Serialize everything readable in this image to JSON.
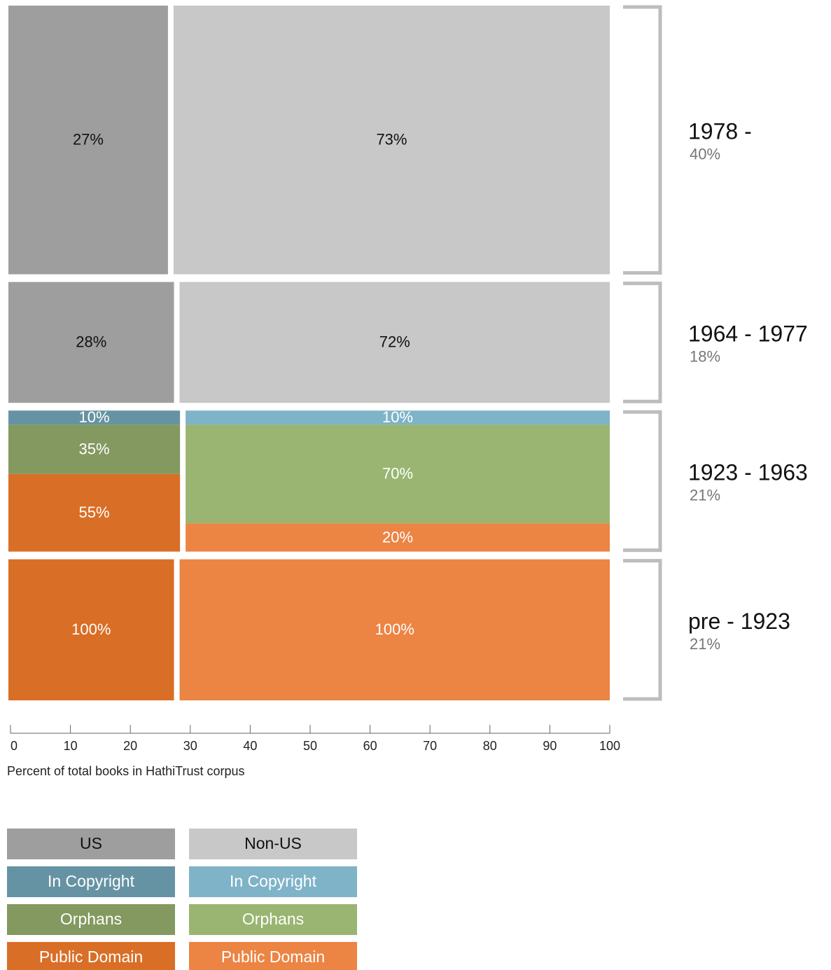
{
  "chart_data": {
    "type": "mosaic",
    "xlabel": "Percent of total books in HathiTrust corpus",
    "xlim": [
      0,
      100
    ],
    "xticks": [
      0,
      10,
      20,
      30,
      40,
      50,
      60,
      70,
      80,
      90,
      100
    ],
    "periods": [
      {
        "name": "1978 -",
        "share": 40,
        "share_label": "40%",
        "columns": [
          {
            "width": 27,
            "width_label": "27%",
            "color": "#9e9e9e"
          },
          {
            "width": 73,
            "width_label": "73%",
            "color": "#c8c8c8"
          }
        ]
      },
      {
        "name": "1964 - 1977",
        "share": 18,
        "share_label": "18%",
        "columns": [
          {
            "width": 28,
            "width_label": "28%",
            "color": "#9e9e9e"
          },
          {
            "width": 72,
            "width_label": "72%",
            "color": "#c8c8c8"
          }
        ]
      },
      {
        "name": "1923 - 1963",
        "share": 21,
        "share_label": "21%",
        "columns": [
          {
            "width": 29,
            "segments": [
              {
                "value": 10,
                "value_label": "10%",
                "color": "#6693a4"
              },
              {
                "value": 35,
                "value_label": "35%",
                "color": "#83995f"
              },
              {
                "value": 55,
                "value_label": "55%",
                "color": "#d96e27"
              }
            ]
          },
          {
            "width": 71,
            "segments": [
              {
                "value": 10,
                "value_label": "10%",
                "color": "#7fb3c7"
              },
              {
                "value": 70,
                "value_label": "70%",
                "color": "#99b571"
              },
              {
                "value": 20,
                "value_label": "20%",
                "color": "#ec8444"
              }
            ]
          }
        ]
      },
      {
        "name": "pre - 1923",
        "share": 21,
        "share_label": "21%",
        "columns": [
          {
            "width": 28,
            "segments": [
              {
                "value": 100,
                "value_label": "100%",
                "color": "#d96e27"
              }
            ]
          },
          {
            "width": 72,
            "segments": [
              {
                "value": 100,
                "value_label": "100%",
                "color": "#ec8444"
              }
            ]
          }
        ]
      }
    ],
    "legend": [
      [
        {
          "name": "US",
          "color": "#9e9e9e"
        },
        {
          "name": "Non-US",
          "color": "#c8c8c8"
        }
      ],
      [
        {
          "name": "In Copyright",
          "color": "#6693a4"
        },
        {
          "name": "In Copyright",
          "color": "#7fb3c7"
        }
      ],
      [
        {
          "name": "Orphans",
          "color": "#83995f"
        },
        {
          "name": "Orphans",
          "color": "#99b571"
        }
      ],
      [
        {
          "name": "Public Domain",
          "color": "#d96e27"
        },
        {
          "name": "Public Domain",
          "color": "#ec8444"
        }
      ]
    ]
  }
}
